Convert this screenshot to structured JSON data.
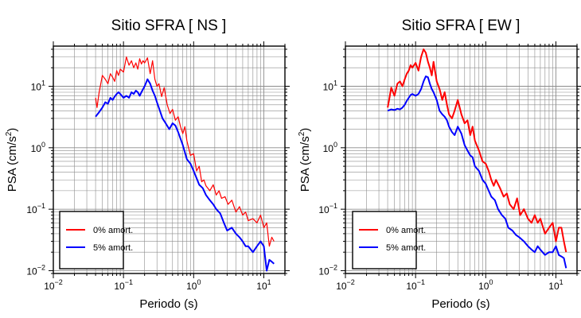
{
  "chart_data": [
    {
      "type": "line",
      "title": "Sitio SFRA [ NS ]",
      "xlabel": "Periodo (s)",
      "ylabel": "PSA (cm/s²)",
      "ylabel_parts": {
        "base": "PSA (cm/s",
        "sup": "2",
        "end": ")"
      },
      "x_scale": "log",
      "y_scale": "log",
      "xlim": [
        0.01,
        20
      ],
      "ylim": [
        0.009,
        45
      ],
      "grid": true,
      "legend_position": "bottom-left",
      "x_ticks": [
        {
          "value": 0.01,
          "base": "10",
          "exp": "−2"
        },
        {
          "value": 0.1,
          "base": "10",
          "exp": "−1"
        },
        {
          "value": 1,
          "base": "10",
          "exp": "0"
        },
        {
          "value": 10,
          "base": "10",
          "exp": "1"
        }
      ],
      "y_ticks": [
        {
          "value": 0.01,
          "base": "10",
          "exp": "−2"
        },
        {
          "value": 0.1,
          "base": "10",
          "exp": "−1"
        },
        {
          "value": 1,
          "base": "10",
          "exp": "0"
        },
        {
          "value": 10,
          "base": "10",
          "exp": "1"
        }
      ],
      "series": [
        {
          "name": "0% amort.",
          "color": "#ff0000",
          "x": [
            0.04,
            0.042,
            0.045,
            0.05,
            0.055,
            0.06,
            0.065,
            0.07,
            0.075,
            0.08,
            0.085,
            0.09,
            0.1,
            0.11,
            0.12,
            0.13,
            0.14,
            0.15,
            0.16,
            0.17,
            0.18,
            0.19,
            0.2,
            0.22,
            0.24,
            0.26,
            0.28,
            0.3,
            0.32,
            0.35,
            0.38,
            0.42,
            0.46,
            0.5,
            0.55,
            0.6,
            0.65,
            0.7,
            0.75,
            0.8,
            0.9,
            1.0,
            1.1,
            1.2,
            1.3,
            1.4,
            1.5,
            1.7,
            1.9,
            2.1,
            2.3,
            2.5,
            2.8,
            3.1,
            3.5,
            4.0,
            4.5,
            5.0,
            5.5,
            6.0,
            7.0,
            8.0,
            9.0,
            10.0,
            11.0,
            12.0,
            13.0,
            14.0
          ],
          "y": [
            6.5,
            4.5,
            8,
            15,
            13,
            11,
            16,
            14,
            12,
            18,
            15,
            19,
            17,
            30,
            22,
            26,
            20,
            24,
            19,
            28,
            23,
            26,
            24,
            29,
            16,
            26,
            13,
            10,
            11,
            6.8,
            9.5,
            5,
            3.6,
            4.2,
            2.8,
            3.2,
            2.2,
            1.7,
            2.2,
            1.3,
            0.75,
            0.8,
            0.42,
            0.5,
            0.28,
            0.3,
            0.24,
            0.2,
            0.25,
            0.17,
            0.2,
            0.15,
            0.16,
            0.12,
            0.14,
            0.09,
            0.11,
            0.08,
            0.09,
            0.065,
            0.07,
            0.06,
            0.08,
            0.05,
            0.06,
            0.025,
            0.035,
            0.03
          ]
        },
        {
          "name": "5% amort.",
          "color": "#0000ff",
          "x": [
            0.04,
            0.045,
            0.05,
            0.055,
            0.06,
            0.065,
            0.07,
            0.075,
            0.08,
            0.085,
            0.09,
            0.1,
            0.11,
            0.12,
            0.13,
            0.14,
            0.15,
            0.16,
            0.17,
            0.18,
            0.2,
            0.22,
            0.24,
            0.26,
            0.28,
            0.3,
            0.33,
            0.36,
            0.4,
            0.45,
            0.5,
            0.55,
            0.6,
            0.7,
            0.8,
            0.9,
            1.0,
            1.1,
            1.2,
            1.35,
            1.5,
            1.7,
            1.9,
            2.1,
            2.4,
            2.7,
            3.0,
            3.5,
            4.0,
            4.5,
            5.0,
            5.5,
            6.0,
            7.0,
            8.0,
            9.0,
            10.0,
            11.0,
            12.0,
            13.0,
            14.0
          ],
          "y": [
            3.2,
            3.8,
            4.5,
            5.5,
            5.2,
            6.5,
            6,
            6.8,
            7.5,
            8,
            7.5,
            6.5,
            7,
            6.5,
            8,
            7.5,
            8.5,
            8,
            7,
            8,
            10,
            13,
            11,
            8.5,
            7,
            5.5,
            4,
            3,
            2.5,
            2,
            2.5,
            2.3,
            1.8,
            1.1,
            0.65,
            0.55,
            0.42,
            0.32,
            0.25,
            0.22,
            0.17,
            0.14,
            0.12,
            0.1,
            0.085,
            0.06,
            0.045,
            0.05,
            0.04,
            0.035,
            0.03,
            0.025,
            0.025,
            0.02,
            0.025,
            0.03,
            0.025,
            0.01,
            0.015,
            0.014,
            0.013
          ]
        }
      ]
    },
    {
      "type": "line",
      "title": "Sitio SFRA [ EW ]",
      "xlabel": "Periodo (s)",
      "ylabel": "PSA (cm/s²)",
      "ylabel_parts": {
        "base": "PSA (cm/s",
        "sup": "2",
        "end": ")"
      },
      "x_scale": "log",
      "y_scale": "log",
      "xlim": [
        0.01,
        20
      ],
      "ylim": [
        0.009,
        45
      ],
      "grid": true,
      "legend_position": "bottom-left",
      "x_ticks": [
        {
          "value": 0.01,
          "base": "10",
          "exp": "−2"
        },
        {
          "value": 0.1,
          "base": "10",
          "exp": "−1"
        },
        {
          "value": 1,
          "base": "10",
          "exp": "0"
        },
        {
          "value": 10,
          "base": "10",
          "exp": "1"
        }
      ],
      "y_ticks": [
        {
          "value": 0.01,
          "base": "10",
          "exp": "−2"
        },
        {
          "value": 0.1,
          "base": "10",
          "exp": "−1"
        },
        {
          "value": 1,
          "base": "10",
          "exp": "0"
        },
        {
          "value": 10,
          "base": "10",
          "exp": "1"
        }
      ],
      "series": [
        {
          "name": "0% amort.",
          "color": "#ff0000",
          "x": [
            0.04,
            0.042,
            0.045,
            0.05,
            0.055,
            0.06,
            0.065,
            0.07,
            0.075,
            0.08,
            0.085,
            0.09,
            0.1,
            0.11,
            0.12,
            0.13,
            0.14,
            0.15,
            0.16,
            0.17,
            0.18,
            0.2,
            0.22,
            0.24,
            0.26,
            0.28,
            0.3,
            0.33,
            0.36,
            0.4,
            0.45,
            0.5,
            0.55,
            0.6,
            0.65,
            0.7,
            0.8,
            0.9,
            1.0,
            1.1,
            1.2,
            1.3,
            1.4,
            1.6,
            1.8,
            2.0,
            2.2,
            2.5,
            2.8,
            3.1,
            3.5,
            4.0,
            4.5,
            5.0,
            5.5,
            6.0,
            7.0,
            8.0,
            9.0,
            10.0,
            11.0,
            12.0,
            13.0,
            14.0
          ],
          "y": [
            4.5,
            6,
            9.5,
            7,
            11,
            12,
            10,
            13,
            16,
            18,
            22,
            20,
            24,
            18,
            30,
            40,
            35,
            25,
            20,
            15,
            25,
            12,
            9,
            6,
            8,
            5,
            3.5,
            3,
            4,
            6,
            3.5,
            2.5,
            2.8,
            1.6,
            2.2,
            1.3,
            0.9,
            0.6,
            0.55,
            0.42,
            0.3,
            0.24,
            0.3,
            0.22,
            0.16,
            0.18,
            0.12,
            0.1,
            0.15,
            0.08,
            0.1,
            0.07,
            0.06,
            0.08,
            0.06,
            0.07,
            0.04,
            0.05,
            0.06,
            0.03,
            0.05,
            0.05,
            0.03,
            0.02
          ]
        },
        {
          "name": "5% amort.",
          "color": "#0000ff",
          "x": [
            0.04,
            0.045,
            0.05,
            0.055,
            0.06,
            0.065,
            0.07,
            0.075,
            0.08,
            0.085,
            0.09,
            0.1,
            0.11,
            0.12,
            0.13,
            0.14,
            0.15,
            0.16,
            0.17,
            0.18,
            0.2,
            0.22,
            0.24,
            0.26,
            0.28,
            0.3,
            0.33,
            0.36,
            0.4,
            0.45,
            0.5,
            0.55,
            0.6,
            0.65,
            0.7,
            0.8,
            0.9,
            1.0,
            1.1,
            1.2,
            1.35,
            1.5,
            1.7,
            1.9,
            2.1,
            2.4,
            2.7,
            3.0,
            3.5,
            4.0,
            4.5,
            5.0,
            5.5,
            6.0,
            7.0,
            8.0,
            9.0,
            10.0,
            11.0,
            12.0,
            13.0,
            14.0
          ],
          "y": [
            4,
            4.2,
            4.1,
            4.3,
            4.2,
            4.5,
            5,
            5.8,
            6.5,
            7.2,
            7.5,
            7,
            7.5,
            9,
            12,
            14.5,
            14,
            11,
            9,
            8,
            6,
            4,
            3.5,
            3.2,
            2.8,
            2.2,
            1.8,
            1.6,
            2.2,
            1.7,
            1.1,
            0.9,
            0.75,
            0.7,
            0.5,
            0.42,
            0.3,
            0.26,
            0.2,
            0.16,
            0.14,
            0.1,
            0.08,
            0.07,
            0.05,
            0.045,
            0.038,
            0.035,
            0.03,
            0.025,
            0.022,
            0.02,
            0.025,
            0.022,
            0.018,
            0.02,
            0.02,
            0.025,
            0.018,
            0.017,
            0.016,
            0.011
          ]
        }
      ]
    }
  ]
}
